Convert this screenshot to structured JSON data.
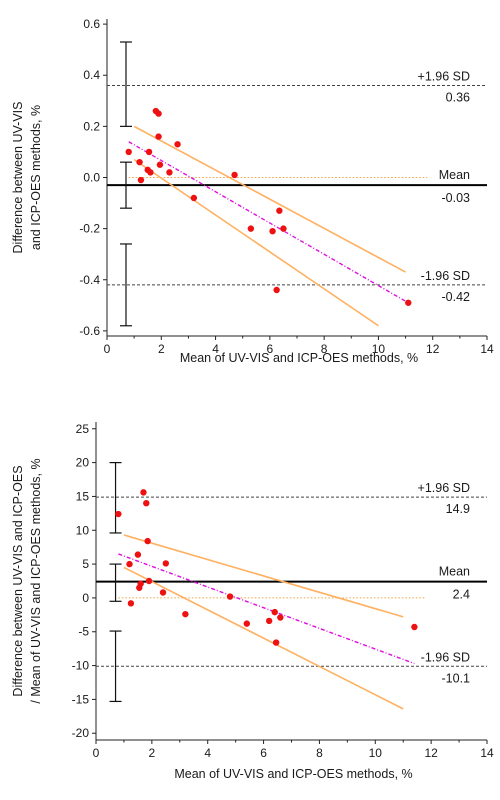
{
  "chart_data": [
    {
      "type": "scatter",
      "subtype": "bland-altman",
      "ylabel": [
        "Difference between UV-VIS",
        "and ICP-OES methods, %"
      ],
      "xlabel": "Mean of UV-VIS and ICP-OES methods, %",
      "xlim": [
        0,
        14
      ],
      "ylim": [
        -0.62,
        0.62
      ],
      "xticks": [
        "0",
        "2",
        "4",
        "6",
        "8",
        "10",
        "12",
        "14"
      ],
      "yticks": [
        {
          "v": 0.6,
          "t": "0.6"
        },
        {
          "v": 0.4,
          "t": "0.4"
        },
        {
          "v": 0.2,
          "t": "0.2"
        },
        {
          "v": 0.0,
          "t": "0.0"
        },
        {
          "v": -0.2,
          "t": "-0.2"
        },
        {
          "v": -0.4,
          "t": "-0.4"
        },
        {
          "v": -0.6,
          "t": "-0.6"
        }
      ],
      "grid": false,
      "points": [
        {
          "x": 0.8,
          "y": 0.1
        },
        {
          "x": 1.2,
          "y": 0.06
        },
        {
          "x": 1.25,
          "y": -0.01
        },
        {
          "x": 1.5,
          "y": 0.03
        },
        {
          "x": 1.55,
          "y": 0.1
        },
        {
          "x": 1.6,
          "y": 0.02
        },
        {
          "x": 1.8,
          "y": 0.26
        },
        {
          "x": 1.9,
          "y": 0.25
        },
        {
          "x": 1.9,
          "y": 0.16
        },
        {
          "x": 1.95,
          "y": 0.05
        },
        {
          "x": 2.3,
          "y": 0.02
        },
        {
          "x": 2.6,
          "y": 0.13
        },
        {
          "x": 3.2,
          "y": -0.08
        },
        {
          "x": 4.7,
          "y": 0.01
        },
        {
          "x": 5.3,
          "y": -0.2
        },
        {
          "x": 6.1,
          "y": -0.21
        },
        {
          "x": 6.25,
          "y": -0.44
        },
        {
          "x": 6.35,
          "y": -0.13
        },
        {
          "x": 6.5,
          "y": -0.2
        },
        {
          "x": 11.1,
          "y": -0.49
        }
      ],
      "mean": {
        "label": "Mean",
        "value": -0.03,
        "value_text": "-0.03"
      },
      "upper_loa": {
        "label": "+1.96 SD",
        "value": 0.36,
        "value_text": "0.36"
      },
      "lower_loa": {
        "label": "-1.96 SD",
        "value": -0.42,
        "value_text": "-0.42"
      },
      "zero_line": {
        "y": 0.0,
        "color": "#f0a040"
      },
      "regression": {
        "x": [
          0.8,
          11.1
        ],
        "y": [
          0.14,
          -0.49
        ],
        "color": "#e010e0"
      },
      "confidence_band": {
        "upper": {
          "x": [
            1.0,
            11.0
          ],
          "y": [
            0.2,
            -0.37
          ]
        },
        "lower": {
          "x": [
            1.0,
            10.0
          ],
          "y": [
            0.07,
            -0.58
          ]
        },
        "color": "#ffb060"
      },
      "error_bars": [
        {
          "x": 0.7,
          "low": 0.2,
          "high": 0.53
        },
        {
          "x": 0.7,
          "low": -0.12,
          "high": 0.06
        },
        {
          "x": 0.7,
          "low": -0.58,
          "high": -0.26
        }
      ],
      "colors": {
        "points": "#ee1111",
        "mean_line": "#000000",
        "loa_line": "#444444"
      }
    },
    {
      "type": "scatter",
      "subtype": "bland-altman",
      "ylabel": [
        "Difference between UV-VIS and ICP-OES",
        "/ Mean of UV-VIS and ICP-OES methods, %"
      ],
      "xlabel": "Mean of UV-VIS and ICP-OES methods, %",
      "xlim": [
        0,
        14
      ],
      "ylim": [
        -21,
        26
      ],
      "xticks": [
        "0",
        "2",
        "4",
        "6",
        "8",
        "10",
        "12",
        "14"
      ],
      "yticks": [
        {
          "v": 25,
          "t": "25"
        },
        {
          "v": 20,
          "t": "20"
        },
        {
          "v": 15,
          "t": "15"
        },
        {
          "v": 10,
          "t": "10"
        },
        {
          "v": 5,
          "t": "5"
        },
        {
          "v": 0,
          "t": "0"
        },
        {
          "v": -5,
          "t": "-5"
        },
        {
          "v": -10,
          "t": "-10"
        },
        {
          "v": -15,
          "t": "-15"
        },
        {
          "v": -20,
          "t": "-20"
        }
      ],
      "grid": false,
      "points": [
        {
          "x": 0.8,
          "y": 12.4
        },
        {
          "x": 1.2,
          "y": 5.0
        },
        {
          "x": 1.25,
          "y": -0.8
        },
        {
          "x": 1.5,
          "y": 6.4
        },
        {
          "x": 1.55,
          "y": 1.5
        },
        {
          "x": 1.6,
          "y": 2.1
        },
        {
          "x": 1.7,
          "y": 15.6
        },
        {
          "x": 1.8,
          "y": 14.0
        },
        {
          "x": 1.85,
          "y": 8.4
        },
        {
          "x": 1.9,
          "y": 2.5
        },
        {
          "x": 2.4,
          "y": 0.8
        },
        {
          "x": 2.5,
          "y": 5.1
        },
        {
          "x": 3.2,
          "y": -2.4
        },
        {
          "x": 4.8,
          "y": 0.2
        },
        {
          "x": 5.4,
          "y": -3.8
        },
        {
          "x": 6.2,
          "y": -3.4
        },
        {
          "x": 6.45,
          "y": -6.6
        },
        {
          "x": 6.4,
          "y": -2.1
        },
        {
          "x": 6.6,
          "y": -2.9
        },
        {
          "x": 11.4,
          "y": -4.3
        }
      ],
      "mean": {
        "label": "Mean",
        "value": 2.4,
        "value_text": "2.4"
      },
      "upper_loa": {
        "label": "+1.96 SD",
        "value": 14.9,
        "value_text": "14.9"
      },
      "lower_loa": {
        "label": "-1.96 SD",
        "value": -10.1,
        "value_text": "-10.1"
      },
      "zero_line": {
        "y": 0.0,
        "color": "#f0a040"
      },
      "regression": {
        "x": [
          0.8,
          11.4
        ],
        "y": [
          6.5,
          -9.7
        ],
        "color": "#e010e0"
      },
      "confidence_band": {
        "upper": {
          "x": [
            1.0,
            11.0
          ],
          "y": [
            9.3,
            -2.8
          ]
        },
        "lower": {
          "x": [
            1.0,
            11.0
          ],
          "y": [
            4.5,
            -16.4
          ]
        },
        "color": "#ffb060"
      },
      "error_bars": [
        {
          "x": 0.7,
          "low": 9.6,
          "high": 20.0
        },
        {
          "x": 0.7,
          "low": -0.5,
          "high": 5.0
        },
        {
          "x": 0.7,
          "low": -15.3,
          "high": -4.9
        }
      ],
      "colors": {
        "points": "#ee1111",
        "mean_line": "#000000",
        "loa_line": "#444444"
      }
    }
  ]
}
